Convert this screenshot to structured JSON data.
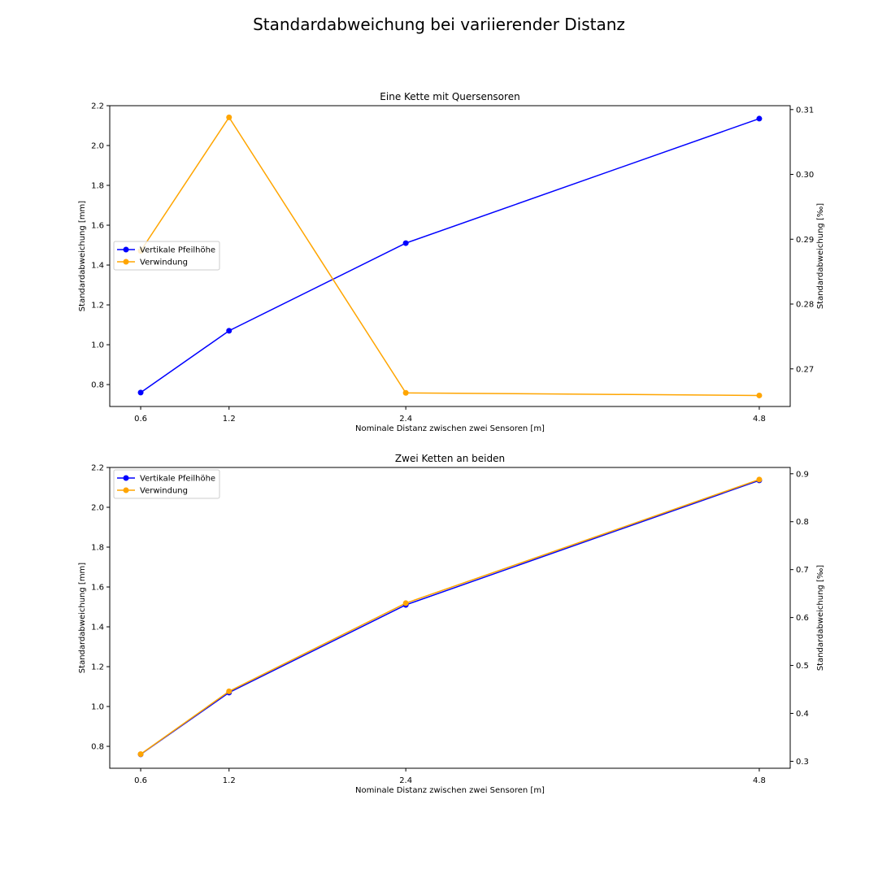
{
  "figure_title": "Standardabweichung bei variierender Distanz",
  "chart_data": [
    {
      "type": "line",
      "title": "Eine Kette mit Quersensoren",
      "xlabel": "Nominale Distanz zwischen zwei Sensoren [m]",
      "ylabel": "Standardabweichung [mm]",
      "ylabel_right": "Standardabweichung [‰]",
      "x": [
        0.6,
        1.2,
        2.4,
        4.8
      ],
      "x_ticks": [
        "0.6",
        "1.2",
        "2.4",
        "4.8"
      ],
      "xlim": [
        0.39,
        5.01
      ],
      "ylim": [
        0.69,
        2.2
      ],
      "ylim_right": [
        0.2642,
        0.3106
      ],
      "y_ticks": [
        "0.8",
        "1.0",
        "1.2",
        "1.4",
        "1.6",
        "1.8",
        "2.0",
        "2.2"
      ],
      "y_ticks_right": [
        "0.27",
        "0.28",
        "0.29",
        "0.30",
        "0.31"
      ],
      "legend_position": "center-left",
      "grid": false,
      "series": [
        {
          "name": "Vertikale Pfeilhöhe",
          "axis": "left",
          "color": "#0000ff",
          "values": [
            0.76,
            1.07,
            1.51,
            2.135
          ]
        },
        {
          "name": "Verwindung",
          "axis": "right",
          "color": "#ffa500",
          "values": [
            0.2882,
            0.3088,
            0.2663,
            0.2659
          ]
        }
      ]
    },
    {
      "type": "line",
      "title": "Zwei Ketten an beiden",
      "xlabel": "Nominale Distanz zwischen zwei Sensoren [m]",
      "ylabel": "Standardabweichung [mm]",
      "ylabel_right": "Standardabweichung [‰]",
      "x": [
        0.6,
        1.2,
        2.4,
        4.8
      ],
      "x_ticks": [
        "0.6",
        "1.2",
        "2.4",
        "4.8"
      ],
      "xlim": [
        0.39,
        5.01
      ],
      "ylim": [
        0.69,
        2.2
      ],
      "ylim_right": [
        0.2855,
        0.9132
      ],
      "y_ticks": [
        "0.8",
        "1.0",
        "1.2",
        "1.4",
        "1.6",
        "1.8",
        "2.0",
        "2.2"
      ],
      "y_ticks_right": [
        "0.3",
        "0.4",
        "0.5",
        "0.6",
        "0.7",
        "0.8",
        "0.9"
      ],
      "legend_position": "top-left",
      "grid": false,
      "series": [
        {
          "name": "Vertikale Pfeilhöhe",
          "axis": "left",
          "color": "#0000ff",
          "values": [
            0.76,
            1.07,
            1.51,
            2.135
          ]
        },
        {
          "name": "Verwindung",
          "axis": "right",
          "color": "#ffa500",
          "values": [
            0.315,
            0.446,
            0.63,
            0.888
          ]
        }
      ]
    }
  ]
}
